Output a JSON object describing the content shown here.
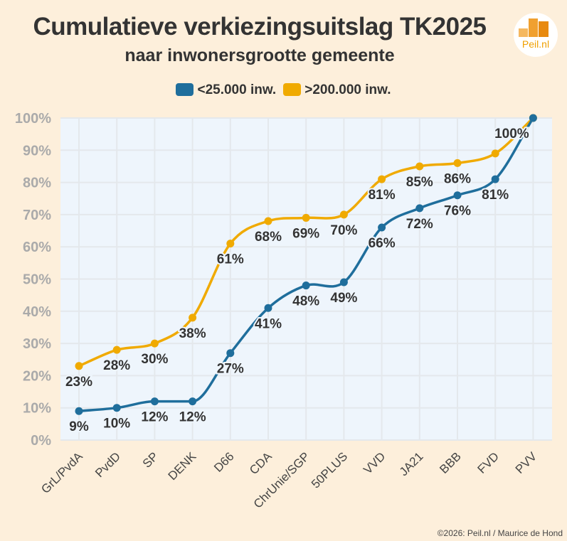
{
  "chart_data": {
    "type": "line",
    "title": "Cumulatieve verkiezingsuitslag TK2025",
    "subtitle": "naar inwonersgrootte gemeente",
    "categories": [
      "GrL/PvdA",
      "PvdD",
      "SP",
      "DENK",
      "D66",
      "CDA",
      "ChrUnie/SGP",
      "50PLUS",
      "VVD",
      "JA21",
      "BBB",
      "FVD",
      "PVV"
    ],
    "series": [
      {
        "name": "<25.000 inw.",
        "color": "#1f6e9c",
        "values": [
          9,
          10,
          12,
          12,
          27,
          41,
          48,
          49,
          66,
          72,
          76,
          81,
          100
        ],
        "labels": [
          "9%",
          "10%",
          "12%",
          "12%",
          "27%",
          "41%",
          "48%",
          "49%",
          "66%",
          "72%",
          "76%",
          "81%",
          null
        ]
      },
      {
        "name": ">200.000 inw.",
        "color": "#f0aa00",
        "values": [
          23,
          28,
          30,
          38,
          61,
          68,
          69,
          70,
          81,
          85,
          86,
          89,
          100
        ],
        "labels": [
          "23%",
          "28%",
          "30%",
          "38%",
          "61%",
          "68%",
          "69%",
          "70%",
          "81%",
          "85%",
          "86%",
          null,
          "100%"
        ]
      }
    ],
    "yticks": [
      "0%",
      "10%",
      "20%",
      "30%",
      "40%",
      "50%",
      "60%",
      "70%",
      "80%",
      "90%",
      "100%"
    ],
    "ylim": [
      0,
      100
    ],
    "grid": true,
    "legend": "top"
  },
  "logo_text": "Peil.nl",
  "credit": "©2026: Peil.nl / Maurice de Hond"
}
